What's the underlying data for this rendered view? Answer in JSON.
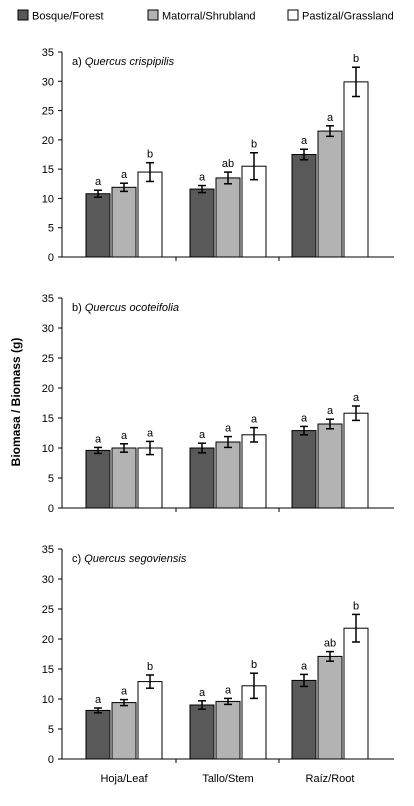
{
  "legend": [
    {
      "label": "Bosque/Forest",
      "color": "#595959"
    },
    {
      "label": "Matorral/Shrubland",
      "color": "#b3b3b3"
    },
    {
      "label": "Pastizal/Grassland",
      "color": "#ffffff"
    }
  ],
  "ylabel": "Biomasa / Biomass (g)",
  "chart_data": [
    {
      "type": "bar",
      "title_prefix": "a) ",
      "title_species": "Quercus crispipilis",
      "categories": [
        "Hoja/Leaf",
        "Tallo/Stem",
        "Raíz/Root"
      ],
      "ylim": [
        0,
        35
      ],
      "yticks": [
        0,
        5,
        10,
        15,
        20,
        25,
        30,
        35
      ],
      "grid": false,
      "series": [
        {
          "name": "Bosque/Forest",
          "values": [
            10.8,
            11.6,
            17.5
          ],
          "errors": [
            0.6,
            0.6,
            0.9
          ],
          "labels": [
            "a",
            "a",
            "a"
          ]
        },
        {
          "name": "Matorral/Shrubland",
          "values": [
            11.9,
            13.5,
            21.5
          ],
          "errors": [
            0.7,
            1.0,
            0.9
          ],
          "labels": [
            "a",
            "ab",
            "a"
          ]
        },
        {
          "name": "Pastizal/Grassland",
          "values": [
            14.5,
            15.5,
            29.9
          ],
          "errors": [
            1.6,
            2.3,
            2.5
          ],
          "labels": [
            "b",
            "b",
            "b"
          ]
        }
      ]
    },
    {
      "type": "bar",
      "title_prefix": "b) ",
      "title_species": "Quercus ocoteifolia",
      "categories": [
        "Hoja/Leaf",
        "Tallo/Stem",
        "Raíz/Root"
      ],
      "ylim": [
        0,
        35
      ],
      "yticks": [
        0,
        5,
        10,
        15,
        20,
        25,
        30,
        35
      ],
      "grid": false,
      "series": [
        {
          "name": "Bosque/Forest",
          "values": [
            9.6,
            10.0,
            12.9
          ],
          "errors": [
            0.5,
            0.8,
            0.7
          ],
          "labels": [
            "a",
            "a",
            "a"
          ]
        },
        {
          "name": "Matorral/Shrubland",
          "values": [
            10.0,
            11.0,
            14.0
          ],
          "errors": [
            0.7,
            0.9,
            0.8
          ],
          "labels": [
            "a",
            "a",
            "a"
          ]
        },
        {
          "name": "Pastizal/Grassland",
          "values": [
            10.0,
            12.2,
            15.8
          ],
          "errors": [
            1.1,
            1.2,
            1.2
          ],
          "labels": [
            "a",
            "a",
            "a"
          ]
        }
      ]
    },
    {
      "type": "bar",
      "title_prefix": "c) ",
      "title_species": "Quercus segoviensis",
      "categories": [
        "Hoja/Leaf",
        "Tallo/Stem",
        "Raíz/Root"
      ],
      "ylim": [
        0,
        35
      ],
      "yticks": [
        0,
        5,
        10,
        15,
        20,
        25,
        30,
        35
      ],
      "grid": false,
      "series": [
        {
          "name": "Bosque/Forest",
          "values": [
            8.1,
            9.0,
            13.1
          ],
          "errors": [
            0.4,
            0.7,
            1.0
          ],
          "labels": [
            "a",
            "a",
            "a"
          ]
        },
        {
          "name": "Matorral/Shrubland",
          "values": [
            9.4,
            9.6,
            17.1
          ],
          "errors": [
            0.5,
            0.5,
            0.8
          ],
          "labels": [
            "a",
            "a",
            "ab"
          ]
        },
        {
          "name": "Pastizal/Grassland",
          "values": [
            12.9,
            12.2,
            21.8
          ],
          "errors": [
            1.1,
            2.1,
            2.3
          ],
          "labels": [
            "b",
            "b",
            "b"
          ]
        }
      ]
    }
  ]
}
